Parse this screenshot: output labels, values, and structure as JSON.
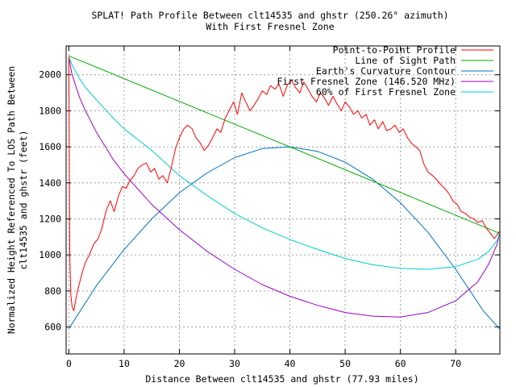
{
  "chart_data": {
    "type": "line",
    "title": "SPLAT! Path Profile Between clt14535 and ghstr (250.26° azimuth)",
    "subtitle": "With First Fresnel Zone",
    "xlabel": "Distance Between clt14535 and ghstr (77.93 miles)",
    "ylabel_line1": "Normalized Height Referenced To LOS Path Between",
    "ylabel_line2": "clt14535 and ghstr (feet)",
    "xlim": [
      -0.5,
      78
    ],
    "ylim": [
      450,
      2160
    ],
    "x_ticks": [
      0,
      10,
      20,
      30,
      40,
      50,
      60,
      70
    ],
    "y_ticks": [
      600,
      800,
      1000,
      1200,
      1400,
      1600,
      1800,
      2000
    ],
    "grid": true,
    "legend_position": "top-right",
    "series": [
      {
        "name": "Point-to-Point Profile",
        "color": "#ff0000",
        "x": [
          0,
          0.15,
          0.35,
          0.6,
          0.9,
          1.3,
          1.8,
          2.4,
          3,
          3.7,
          4.5,
          5.3,
          6,
          6.8,
          7.5,
          8.2,
          9,
          9.7,
          10.4,
          11,
          11.8,
          12.5,
          13.3,
          14,
          14.8,
          15.5,
          16.3,
          17,
          17.8,
          18.5,
          19.3,
          20,
          20.8,
          21.5,
          22.3,
          23,
          23.8,
          24.5,
          25.3,
          26,
          26.8,
          27.5,
          28.3,
          29,
          29.8,
          30.5,
          31.3,
          32,
          32.8,
          33.5,
          34.3,
          35,
          35.8,
          36.5,
          37.3,
          38,
          38.8,
          39.5,
          40.3,
          41,
          41.8,
          42.5,
          43.3,
          44,
          44.8,
          45.5,
          46.3,
          47,
          47.8,
          48.5,
          49.3,
          50,
          50.8,
          51.5,
          52.3,
          53,
          53.8,
          54.5,
          55.3,
          56,
          56.8,
          57.5,
          58.3,
          59,
          59.8,
          60.5,
          61.3,
          62,
          62.8,
          63.5,
          64.3,
          65,
          65.8,
          66.5,
          67.3,
          68,
          68.8,
          69.5,
          70.3,
          71,
          71.8,
          72.5,
          73.3,
          74,
          74.8,
          75.5,
          76.3,
          77,
          77.93
        ],
        "y": [
          2100,
          1000,
          780,
          710,
          690,
          760,
          830,
          900,
          960,
          1000,
          1060,
          1090,
          1150,
          1250,
          1300,
          1240,
          1330,
          1380,
          1370,
          1410,
          1440,
          1480,
          1500,
          1510,
          1460,
          1480,
          1420,
          1440,
          1400,
          1480,
          1590,
          1650,
          1700,
          1720,
          1700,
          1650,
          1620,
          1580,
          1610,
          1650,
          1700,
          1680,
          1760,
          1800,
          1850,
          1780,
          1900,
          1850,
          1800,
          1830,
          1870,
          1910,
          1890,
          1940,
          1920,
          1950,
          1880,
          1940,
          1970,
          1930,
          1900,
          1960,
          1920,
          1880,
          1850,
          1900,
          1870,
          1830,
          1880,
          1840,
          1800,
          1850,
          1820,
          1780,
          1800,
          1760,
          1780,
          1720,
          1750,
          1700,
          1740,
          1690,
          1700,
          1720,
          1680,
          1700,
          1650,
          1620,
          1600,
          1580,
          1500,
          1460,
          1440,
          1420,
          1390,
          1370,
          1340,
          1300,
          1280,
          1240,
          1230,
          1210,
          1200,
          1180,
          1190,
          1150,
          1120,
          1090,
          1130
        ]
      },
      {
        "name": "Line of Sight Path",
        "color": "#00aa00",
        "x": [
          0,
          77.93
        ],
        "y": [
          2105,
          1120
        ]
      },
      {
        "name": "Earth's Curvature Contour",
        "color": "#0070c0",
        "x": [
          0,
          5,
          10,
          15,
          20,
          25,
          30,
          35,
          40,
          45,
          50,
          55,
          60,
          65,
          70,
          75,
          77.93
        ],
        "y": [
          590,
          830,
          1030,
          1200,
          1345,
          1455,
          1540,
          1590,
          1600,
          1575,
          1515,
          1420,
          1290,
          1125,
          920,
          690,
          590
        ]
      },
      {
        "name": "First Fresnel Zone (146.520 MHz)",
        "color": "#9900cc",
        "x": [
          0,
          0.5,
          1,
          2,
          3,
          5,
          8,
          10,
          15,
          20,
          25,
          30,
          35,
          40,
          45,
          50,
          55,
          60,
          65,
          70,
          74,
          76,
          77.5,
          77.93
        ],
        "y": [
          2100,
          2010,
          1960,
          1870,
          1800,
          1680,
          1530,
          1450,
          1280,
          1140,
          1020,
          920,
          835,
          770,
          720,
          680,
          660,
          655,
          680,
          745,
          850,
          950,
          1060,
          1120
        ]
      },
      {
        "name": "60% of First Fresnel Zone",
        "color": "#00cccc",
        "x": [
          0,
          0.5,
          1,
          2,
          3,
          5,
          8,
          10,
          15,
          20,
          25,
          30,
          35,
          40,
          45,
          50,
          55,
          60,
          65,
          70,
          74,
          76,
          77.5,
          77.93
        ],
        "y": [
          2100,
          2060,
          2030,
          1975,
          1930,
          1860,
          1760,
          1700,
          1580,
          1440,
          1330,
          1230,
          1150,
          1085,
          1030,
          980,
          945,
          925,
          920,
          935,
          975,
          1020,
          1080,
          1120
        ]
      }
    ]
  }
}
